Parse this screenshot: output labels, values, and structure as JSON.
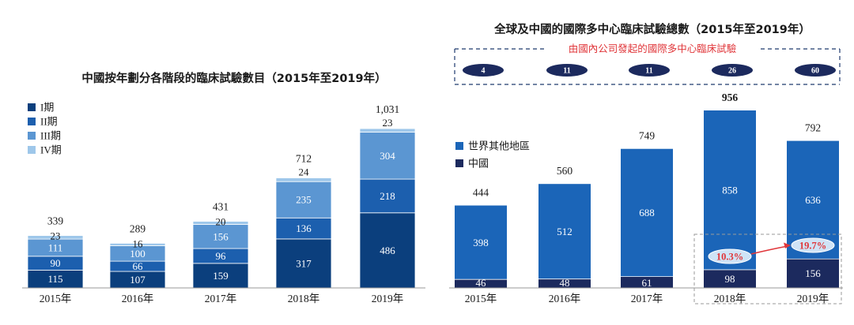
{
  "chart_data": [
    {
      "type": "bar",
      "stacked": true,
      "title": "中國按年劃分各階段的臨床試驗數目（2015年至2019年）",
      "categories": [
        "2015年",
        "2016年",
        "2017年",
        "2018年",
        "2019年"
      ],
      "series": [
        {
          "name": "I期",
          "values": [
            115,
            107,
            159,
            317,
            486
          ],
          "color": "#0b3f7d"
        },
        {
          "name": "II期",
          "values": [
            90,
            66,
            96,
            136,
            218
          ],
          "color": "#1c5fae"
        },
        {
          "name": "III期",
          "values": [
            111,
            100,
            156,
            235,
            304
          ],
          "color": "#5b96d2"
        },
        {
          "name": "IV期",
          "values": [
            23,
            16,
            20,
            24,
            23
          ],
          "color": "#9ec7ea"
        }
      ],
      "totals": [
        "339",
        "289",
        "431",
        "712",
        "1,031"
      ],
      "totals_values": [
        339,
        289,
        431,
        712,
        1031
      ],
      "legend_position": "top-left",
      "ylim": [
        0,
        1031
      ]
    },
    {
      "type": "bar",
      "stacked": true,
      "title": "全球及中國的國際多中心臨床試驗總數（2015年至2019年）",
      "categories": [
        "2015年",
        "2016年",
        "2017年",
        "2018年",
        "2019年"
      ],
      "series": [
        {
          "name": "中國",
          "values": [
            46,
            48,
            61,
            98,
            156
          ],
          "color": "#1c2a5e"
        },
        {
          "name": "世界其他地區",
          "values": [
            398,
            512,
            688,
            858,
            636
          ],
          "color": "#1b65b8"
        }
      ],
      "totals": [
        "444",
        "560",
        "749",
        "956",
        "792"
      ],
      "totals_values": [
        444,
        560,
        749,
        956,
        792
      ],
      "bold_total_index": 3,
      "legend_position": "top-left",
      "ylim": [
        0,
        956
      ],
      "annotation_title": "由國內公司發起的國際多中心臨床試驗",
      "annotation_values": [
        "4",
        "11",
        "11",
        "26",
        "60"
      ],
      "share_labels": [
        {
          "category": "2018年",
          "text": "10.3%"
        },
        {
          "category": "2019年",
          "text": "19.7%"
        }
      ]
    }
  ]
}
